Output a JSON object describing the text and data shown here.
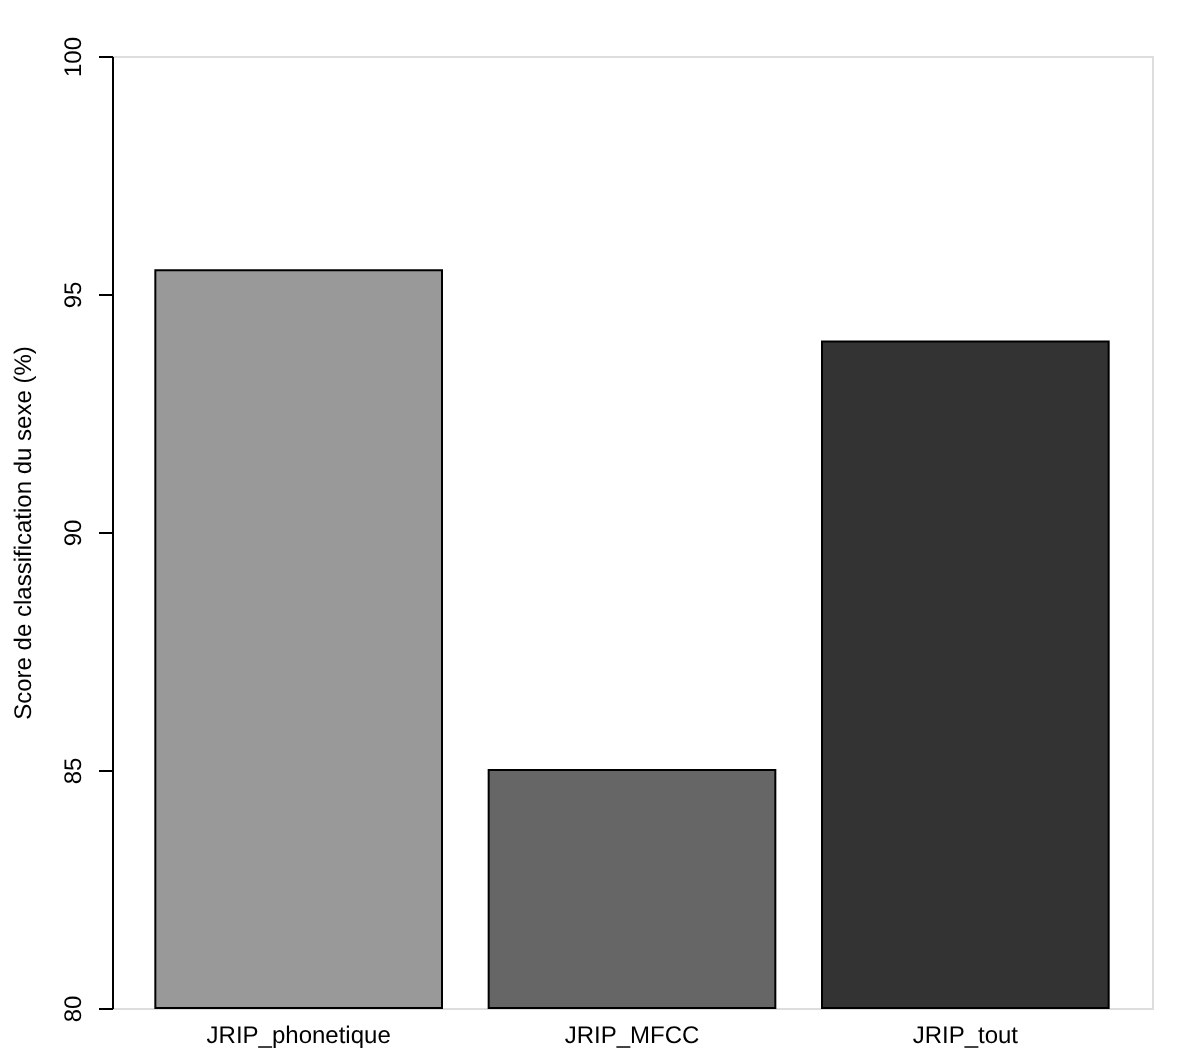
{
  "chart_data": {
    "type": "bar",
    "ylabel": "Score de classification du sexe (%)",
    "categories": [
      "JRIP_phonetique",
      "JRIP_MFCC",
      "JRIP_tout"
    ],
    "values": [
      95.5,
      85,
      94
    ],
    "colors": [
      "#999999",
      "#666666",
      "#333333"
    ],
    "ylim": [
      80,
      100
    ],
    "yticks": [
      80,
      85,
      90,
      95,
      100
    ],
    "grid": false
  }
}
